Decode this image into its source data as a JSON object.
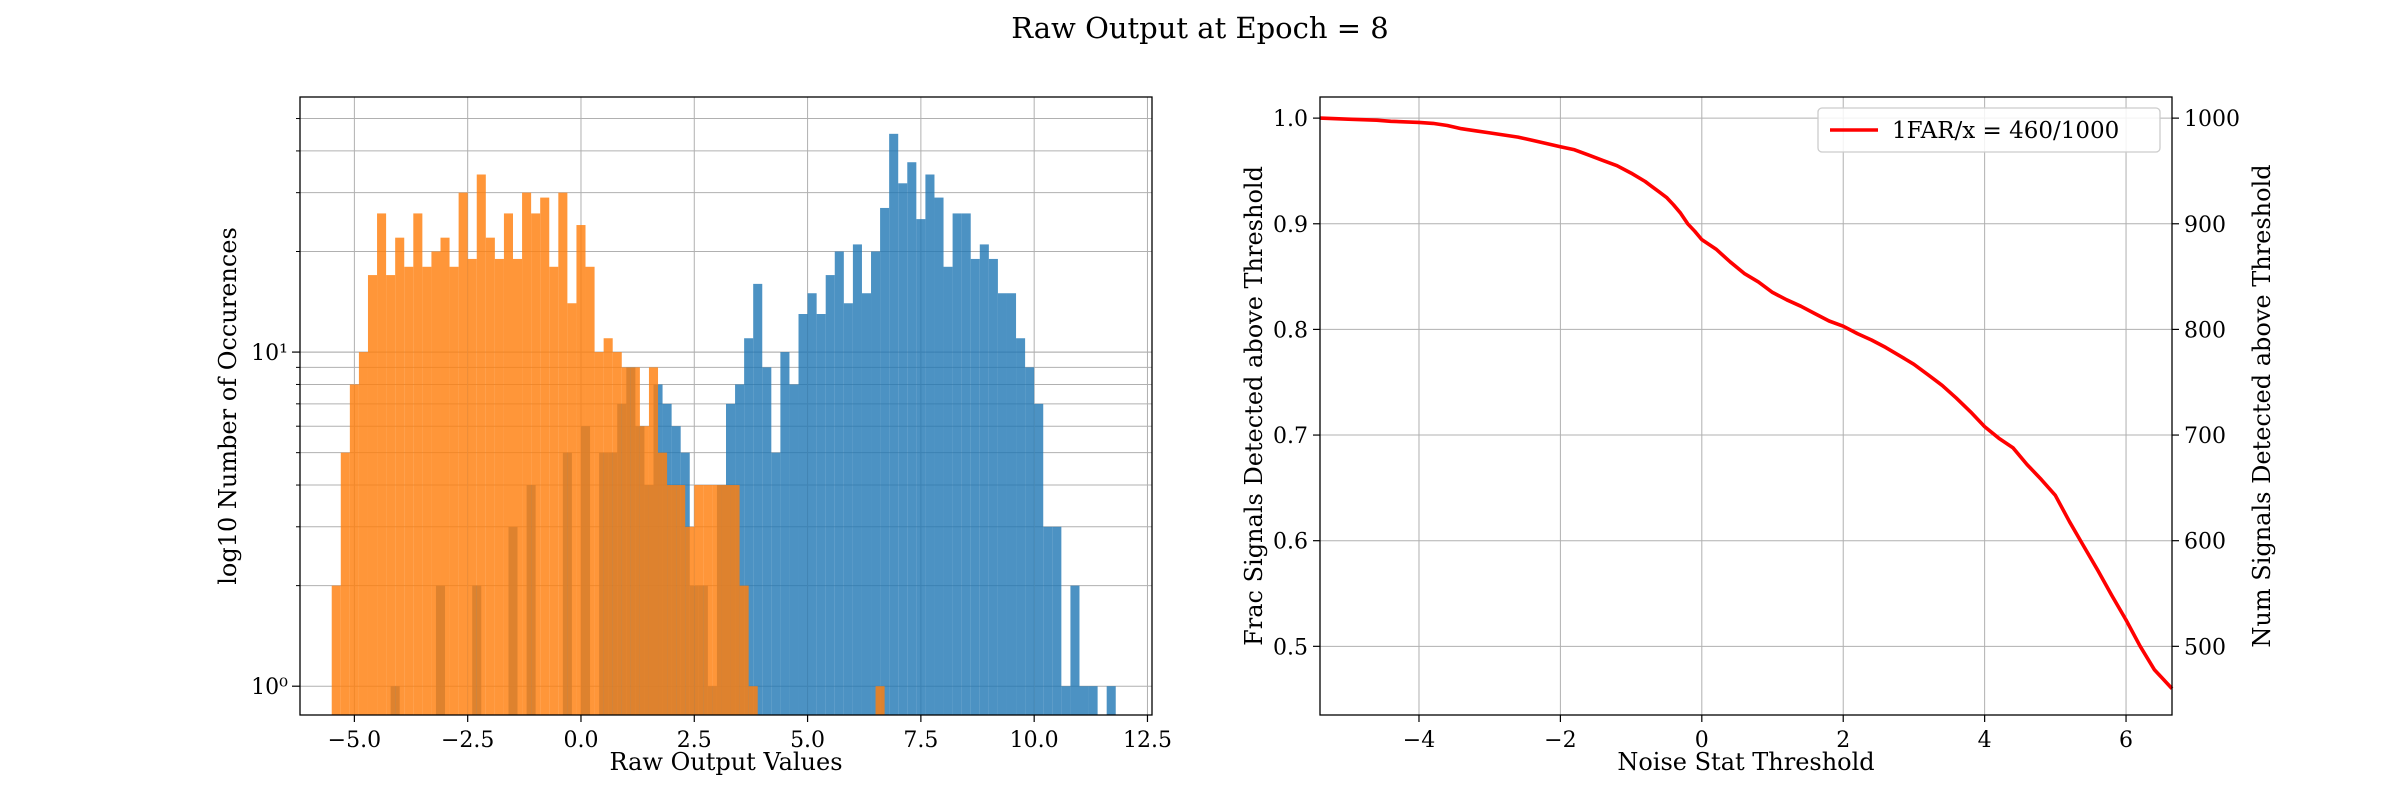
{
  "figure": {
    "suptitle": "Raw Output at Epoch = 8"
  },
  "chart_data": [
    {
      "type": "histogram",
      "xlabel": "Raw Output Values",
      "ylabel": "log10 Number of Occurences",
      "yscale": "log",
      "xlim": [
        -6.2,
        12.6
      ],
      "ylim": [
        0.82,
        58
      ],
      "xticks": [
        -5.0,
        -2.5,
        0.0,
        2.5,
        5.0,
        7.5,
        10.0,
        12.5
      ],
      "xtick_labels": [
        "−5.0",
        "−2.5",
        "0.0",
        "2.5",
        "5.0",
        "7.5",
        "10.0",
        "12.5"
      ],
      "yticks": [
        1,
        10
      ],
      "ytick_labels": [
        "10⁰",
        "10¹"
      ],
      "grid": true,
      "series": [
        {
          "color": "#1f77b4",
          "bins": [
            [
              -4.2,
              -4.0,
              1
            ],
            [
              -3.2,
              -3.0,
              2
            ],
            [
              -2.4,
              -2.2,
              2
            ],
            [
              -1.6,
              -1.4,
              3
            ],
            [
              -1.2,
              -1.0,
              4
            ],
            [
              -0.4,
              -0.2,
              5
            ],
            [
              0.0,
              0.2,
              6
            ],
            [
              0.4,
              0.6,
              5
            ],
            [
              0.6,
              0.8,
              5
            ],
            [
              0.8,
              1.0,
              7
            ],
            [
              1.0,
              1.2,
              9
            ],
            [
              1.2,
              1.4,
              6
            ],
            [
              1.4,
              1.6,
              4
            ],
            [
              1.6,
              1.8,
              8
            ],
            [
              1.8,
              2.0,
              7
            ],
            [
              2.0,
              2.2,
              6
            ],
            [
              2.2,
              2.4,
              5
            ],
            [
              2.4,
              2.6,
              2
            ],
            [
              2.6,
              2.8,
              2
            ],
            [
              2.8,
              3.0,
              1
            ],
            [
              3.0,
              3.2,
              4
            ],
            [
              3.2,
              3.4,
              7
            ],
            [
              3.4,
              3.6,
              8
            ],
            [
              3.6,
              3.8,
              11
            ],
            [
              3.8,
              4.0,
              16
            ],
            [
              4.0,
              4.2,
              9
            ],
            [
              4.2,
              4.4,
              5
            ],
            [
              4.4,
              4.6,
              10
            ],
            [
              4.6,
              4.8,
              8
            ],
            [
              4.8,
              5.0,
              13
            ],
            [
              5.0,
              5.2,
              15
            ],
            [
              5.2,
              5.4,
              13
            ],
            [
              5.4,
              5.6,
              17
            ],
            [
              5.6,
              5.8,
              20
            ],
            [
              5.8,
              6.0,
              14
            ],
            [
              6.0,
              6.2,
              21
            ],
            [
              6.2,
              6.4,
              15
            ],
            [
              6.4,
              6.6,
              20
            ],
            [
              6.6,
              6.8,
              27
            ],
            [
              6.8,
              7.0,
              45
            ],
            [
              7.0,
              7.2,
              32
            ],
            [
              7.2,
              7.4,
              37
            ],
            [
              7.4,
              7.6,
              25
            ],
            [
              7.6,
              7.8,
              34
            ],
            [
              7.8,
              8.0,
              29
            ],
            [
              8.0,
              8.2,
              18
            ],
            [
              8.2,
              8.4,
              26
            ],
            [
              8.4,
              8.6,
              26
            ],
            [
              8.6,
              8.8,
              19
            ],
            [
              8.8,
              9.0,
              21
            ],
            [
              9.0,
              9.2,
              19
            ],
            [
              9.2,
              9.4,
              15
            ],
            [
              9.4,
              9.6,
              15
            ],
            [
              9.6,
              9.8,
              11
            ],
            [
              9.8,
              10.0,
              9
            ],
            [
              10.0,
              10.2,
              7
            ],
            [
              10.2,
              10.4,
              3
            ],
            [
              10.4,
              10.6,
              3
            ],
            [
              10.6,
              10.8,
              1
            ],
            [
              10.8,
              11.0,
              2
            ],
            [
              11.0,
              11.2,
              1
            ],
            [
              11.2,
              11.4,
              1
            ],
            [
              11.6,
              11.8,
              1
            ]
          ]
        },
        {
          "color": "#ff7f0e",
          "alpha": 0.82,
          "bins": [
            [
              -5.5,
              -5.3,
              2
            ],
            [
              -5.3,
              -5.1,
              5
            ],
            [
              -5.1,
              -4.9,
              8
            ],
            [
              -4.9,
              -4.7,
              10
            ],
            [
              -4.7,
              -4.5,
              17
            ],
            [
              -4.5,
              -4.3,
              26
            ],
            [
              -4.3,
              -4.1,
              17
            ],
            [
              -4.1,
              -3.9,
              22
            ],
            [
              -3.9,
              -3.7,
              18
            ],
            [
              -3.7,
              -3.5,
              26
            ],
            [
              -3.5,
              -3.3,
              18
            ],
            [
              -3.3,
              -3.1,
              20
            ],
            [
              -3.1,
              -2.9,
              22
            ],
            [
              -2.9,
              -2.7,
              18
            ],
            [
              -2.7,
              -2.5,
              30
            ],
            [
              -2.5,
              -2.3,
              19
            ],
            [
              -2.3,
              -2.1,
              34
            ],
            [
              -2.1,
              -1.9,
              22
            ],
            [
              -1.9,
              -1.7,
              19
            ],
            [
              -1.7,
              -1.5,
              26
            ],
            [
              -1.5,
              -1.3,
              19
            ],
            [
              -1.3,
              -1.1,
              30
            ],
            [
              -1.1,
              -0.9,
              26
            ],
            [
              -0.9,
              -0.7,
              29
            ],
            [
              -0.7,
              -0.5,
              18
            ],
            [
              -0.5,
              -0.3,
              30
            ],
            [
              -0.3,
              -0.1,
              14
            ],
            [
              -0.1,
              0.1,
              24
            ],
            [
              0.1,
              0.3,
              18
            ],
            [
              0.3,
              0.5,
              10
            ],
            [
              0.5,
              0.7,
              11
            ],
            [
              0.7,
              0.9,
              10
            ],
            [
              0.9,
              1.1,
              9
            ],
            [
              1.1,
              1.3,
              9
            ],
            [
              1.3,
              1.5,
              6
            ],
            [
              1.5,
              1.7,
              9
            ],
            [
              1.7,
              1.9,
              5
            ],
            [
              1.9,
              2.1,
              4
            ],
            [
              2.1,
              2.3,
              4
            ],
            [
              2.3,
              2.5,
              3
            ],
            [
              2.5,
              2.7,
              4
            ],
            [
              2.7,
              2.9,
              4
            ],
            [
              2.9,
              3.1,
              4
            ],
            [
              3.1,
              3.3,
              4
            ],
            [
              3.3,
              3.5,
              4
            ],
            [
              3.5,
              3.7,
              2
            ],
            [
              3.7,
              3.9,
              1
            ],
            [
              6.5,
              6.7,
              1
            ]
          ]
        }
      ]
    },
    {
      "type": "line",
      "xlabel": "Noise Stat Threshold",
      "ylabel": "Frac Signals Detected above Threshold",
      "ylabel_right": "Num Signals Detected above Threshold",
      "xlim": [
        -5.4,
        6.65
      ],
      "ylim": [
        0.435,
        1.02
      ],
      "ylim_right": [
        435,
        1020
      ],
      "xticks": [
        -4,
        -2,
        0,
        2,
        4,
        6
      ],
      "xtick_labels": [
        "−4",
        "−2",
        "0",
        "2",
        "4",
        "6"
      ],
      "yticks": [
        0.5,
        0.6,
        0.7,
        0.8,
        0.9,
        1.0
      ],
      "ytick_labels": [
        "0.5",
        "0.6",
        "0.7",
        "0.8",
        "0.9",
        "1.0"
      ],
      "yticks_right": [
        500,
        600,
        700,
        800,
        900,
        1000
      ],
      "ytick_labels_right": [
        "500",
        "600",
        "700",
        "800",
        "900",
        "1000"
      ],
      "grid": true,
      "legend_position": "upper-right",
      "series": [
        {
          "name": "1FAR/x = 460/1000",
          "color": "#ff0000",
          "x": [
            -5.4,
            -5.0,
            -4.6,
            -4.4,
            -4.0,
            -3.8,
            -3.6,
            -3.4,
            -3.2,
            -3.0,
            -2.8,
            -2.6,
            -2.4,
            -2.2,
            -2.0,
            -1.8,
            -1.6,
            -1.4,
            -1.2,
            -1.0,
            -0.8,
            -0.6,
            -0.5,
            -0.4,
            -0.3,
            -0.2,
            -0.1,
            0.0,
            0.2,
            0.4,
            0.6,
            0.8,
            1.0,
            1.2,
            1.4,
            1.6,
            1.8,
            2.0,
            2.2,
            2.4,
            2.6,
            2.8,
            3.0,
            3.2,
            3.4,
            3.6,
            3.8,
            4.0,
            4.2,
            4.4,
            4.6,
            4.8,
            5.0,
            5.2,
            5.4,
            5.6,
            5.8,
            6.0,
            6.2,
            6.4,
            6.65
          ],
          "y": [
            1.0,
            0.999,
            0.998,
            0.997,
            0.996,
            0.995,
            0.993,
            0.99,
            0.988,
            0.986,
            0.984,
            0.982,
            0.979,
            0.976,
            0.973,
            0.97,
            0.965,
            0.96,
            0.955,
            0.948,
            0.94,
            0.93,
            0.925,
            0.918,
            0.91,
            0.9,
            0.893,
            0.885,
            0.876,
            0.864,
            0.853,
            0.845,
            0.835,
            0.828,
            0.822,
            0.815,
            0.808,
            0.803,
            0.796,
            0.79,
            0.783,
            0.775,
            0.767,
            0.757,
            0.747,
            0.735,
            0.722,
            0.708,
            0.697,
            0.688,
            0.672,
            0.658,
            0.643,
            0.618,
            0.595,
            0.572,
            0.548,
            0.525,
            0.5,
            0.478,
            0.46
          ]
        }
      ]
    }
  ]
}
